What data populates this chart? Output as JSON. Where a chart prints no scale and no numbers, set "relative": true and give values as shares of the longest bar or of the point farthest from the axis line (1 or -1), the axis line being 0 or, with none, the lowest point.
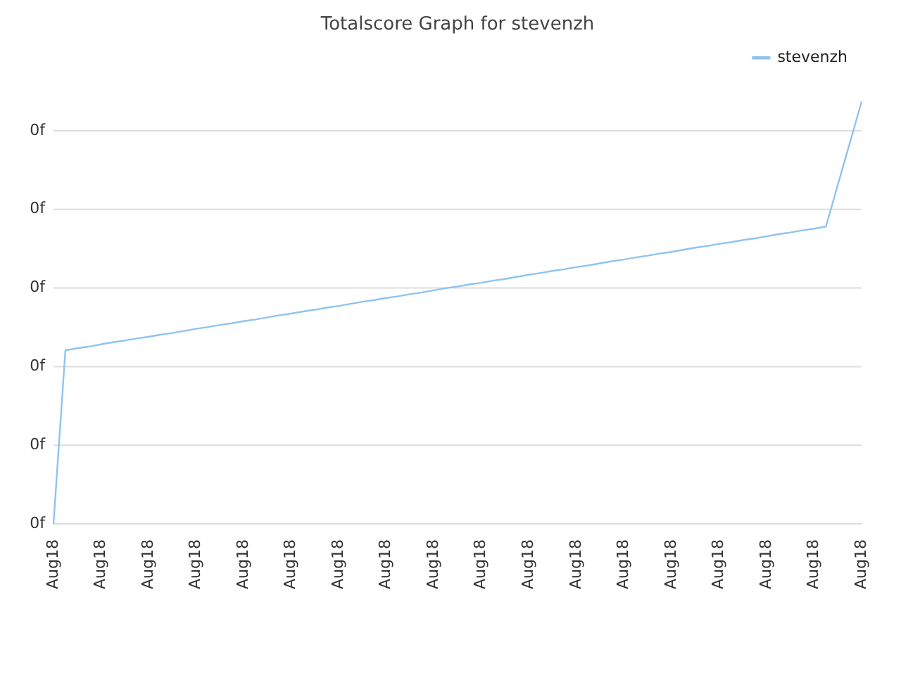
{
  "chart_data": {
    "type": "line",
    "title": "Totalscore Graph for stevenzh",
    "relative": true,
    "categories": [
      "Aug18",
      null,
      null,
      null,
      "Aug18",
      null,
      null,
      null,
      "Aug18",
      null,
      null,
      null,
      "Aug18",
      null,
      null,
      null,
      "Aug18",
      null,
      null,
      null,
      "Aug18",
      null,
      null,
      null,
      "Aug18",
      null,
      null,
      null,
      "Aug18",
      null,
      null,
      null,
      "Aug18",
      null,
      null,
      null,
      "Aug18",
      null,
      null,
      null,
      "Aug18",
      null,
      null,
      null,
      "Aug18",
      null,
      null,
      null,
      "Aug18",
      null,
      null,
      null,
      "Aug18",
      null,
      null,
      null,
      "Aug18",
      null,
      null,
      null,
      "Aug18",
      null,
      null,
      null,
      "Aug18",
      null,
      null,
      null,
      "Aug18"
    ],
    "series": [
      {
        "name": "stevenzh",
        "color": "#90c3f0",
        "values": [
          0,
          0.411,
          0.416,
          0.42,
          0.425,
          0.43,
          0.434,
          0.439,
          0.443,
          0.448,
          0.452,
          0.457,
          0.462,
          0.466,
          0.471,
          0.475,
          0.48,
          0.484,
          0.489,
          0.494,
          0.498,
          0.503,
          0.507,
          0.512,
          0.516,
          0.521,
          0.526,
          0.53,
          0.535,
          0.539,
          0.544,
          0.548,
          0.553,
          0.558,
          0.562,
          0.567,
          0.571,
          0.576,
          0.58,
          0.585,
          0.59,
          0.594,
          0.599,
          0.603,
          0.608,
          0.612,
          0.617,
          0.622,
          0.626,
          0.631,
          0.635,
          0.64,
          0.644,
          0.649,
          0.654,
          0.658,
          0.663,
          0.667,
          0.672,
          0.676,
          0.681,
          0.686,
          0.69,
          0.695,
          0.699,
          0.704,
          0.803,
          0.901,
          1
        ]
      }
    ],
    "annotations": [
      "0f",
      "0f",
      "0f",
      "0f",
      "0f",
      "0f"
    ],
    "grid": "y",
    "legend": "top right",
    "marker": "none",
    "line_style": "solid"
  }
}
